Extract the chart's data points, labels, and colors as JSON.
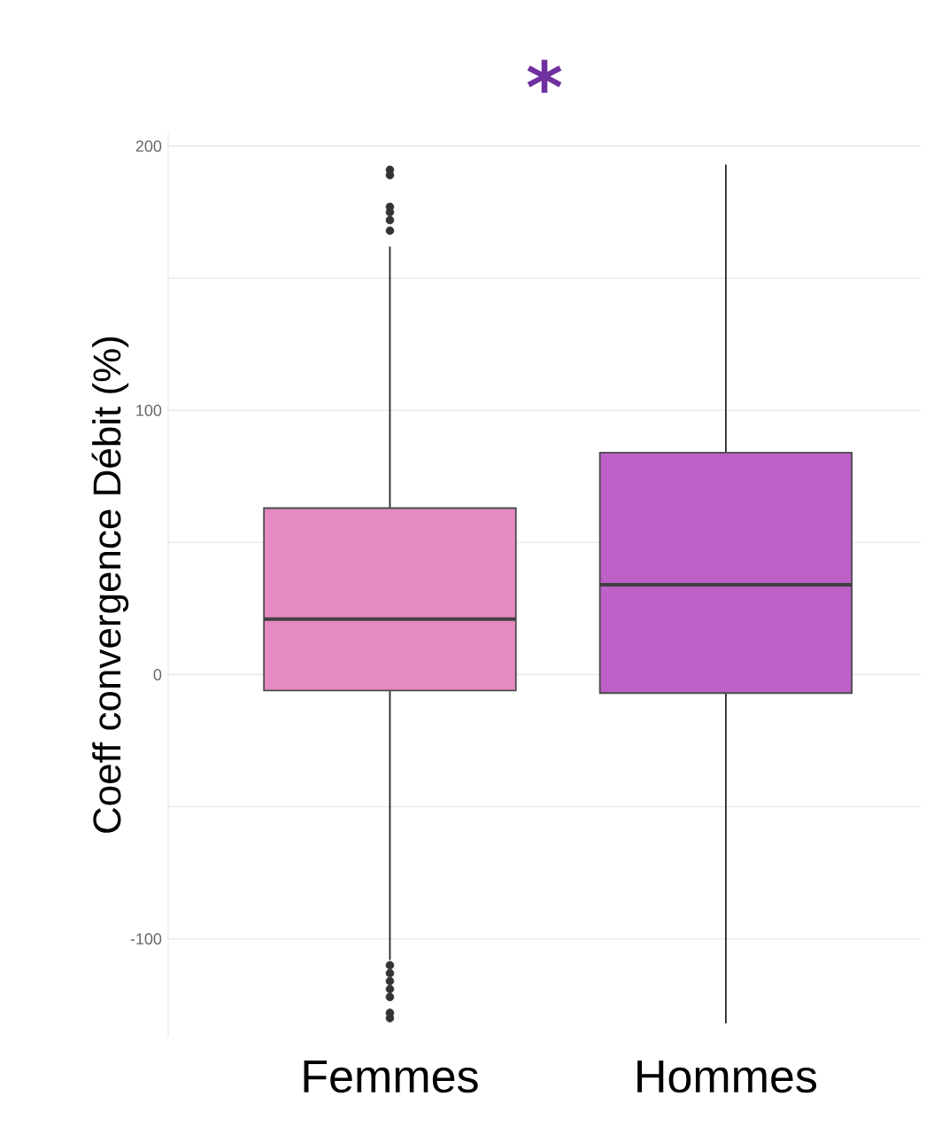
{
  "chart_data": {
    "type": "box",
    "title": "*",
    "ylabel": "Coeff convergence Débit (%)",
    "categories": [
      "Femmes",
      "Hommes"
    ],
    "colors": [
      "#e58bc2",
      "#bd60c8"
    ],
    "boxes": [
      {
        "low": -108,
        "q1": -6,
        "median": 21,
        "q3": 63,
        "high": 162,
        "outliers": [
          168,
          172,
          175,
          177,
          189,
          191,
          -110,
          -113,
          -116,
          -119,
          -122,
          -128,
          -130
        ]
      },
      {
        "low": -132,
        "q1": -7,
        "median": 34,
        "q3": 84,
        "high": 193
      }
    ],
    "ylim": [
      -137,
      205
    ],
    "yticks": [
      {
        "value": -100,
        "label": "-100"
      },
      0,
      {
        "value": 50,
        "label": null
      },
      100,
      {
        "value": 150,
        "label": null
      },
      200,
      {
        "value": -50,
        "label": null
      }
    ],
    "grid": "y"
  }
}
